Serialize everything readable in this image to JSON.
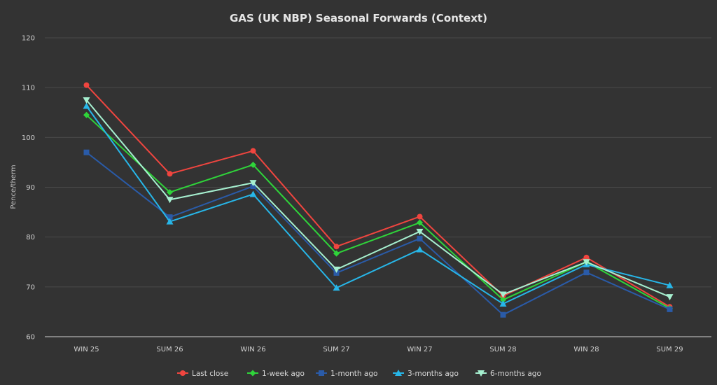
{
  "chart_data": {
    "type": "line",
    "title": "GAS (UK NBP) Seasonal Forwards (Context)",
    "xlabel": "",
    "ylabel": "Pence/therm",
    "ylim": [
      60,
      120
    ],
    "yticks": [
      60,
      70,
      80,
      90,
      100,
      110,
      120
    ],
    "grid": true,
    "legend_position": "bottom",
    "categories": [
      "WIN 25",
      "SUM 26",
      "WIN 26",
      "SUM 27",
      "WIN 27",
      "SUM 28",
      "WIN 28",
      "SUM 29"
    ],
    "series": [
      {
        "name": "Last close",
        "color": "#f0453f",
        "marker": "circle",
        "values": [
          110.5,
          92.7,
          97.3,
          78.1,
          84.1,
          68.2,
          75.9,
          66.0
        ]
      },
      {
        "name": "1-week ago",
        "color": "#2fd43a",
        "marker": "diamond",
        "values": [
          104.5,
          89.0,
          94.5,
          76.7,
          82.9,
          67.4,
          75.0,
          65.7
        ]
      },
      {
        "name": "1-month ago",
        "color": "#2a5ba8",
        "marker": "square",
        "values": [
          97.0,
          84.0,
          90.2,
          72.8,
          79.7,
          64.4,
          72.9,
          65.5
        ]
      },
      {
        "name": "3-months ago",
        "color": "#27b6e8",
        "marker": "triangle-up",
        "values": [
          106.3,
          83.1,
          88.6,
          69.8,
          77.5,
          66.6,
          74.5,
          70.3
        ]
      },
      {
        "name": "6-months ago",
        "color": "#a6f0d0",
        "marker": "triangle-down",
        "values": [
          107.5,
          87.5,
          90.9,
          73.5,
          81.1,
          68.5,
          75.0,
          68.0
        ]
      }
    ]
  }
}
